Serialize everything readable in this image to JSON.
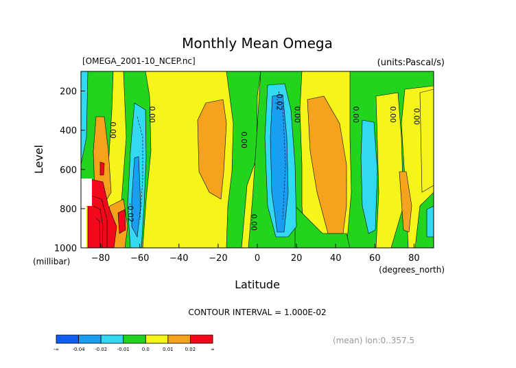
{
  "chart_data": {
    "type": "heatmap",
    "title": "Monthly Mean Omega",
    "source_label": "[OMEGA_2001-10_NCEP.nc]",
    "units_label": "(units:Pascal/s)",
    "xlabel": "Latitude",
    "ylabel": "Level",
    "x_unit_label": "(degrees_north)",
    "y_unit_label": "(millibar)",
    "xlim": [
      -90,
      90
    ],
    "ylim": [
      1000,
      100
    ],
    "x_ticks": [
      -80,
      -60,
      -40,
      -20,
      0,
      20,
      40,
      60,
      80
    ],
    "y_ticks": [
      200,
      400,
      600,
      800,
      1000
    ],
    "contour_interval_text": "CONTOUR INTERVAL = 1.000E-02",
    "mean_note": "(mean) lon:0..357.5",
    "grid": false,
    "colorbar": {
      "colors": [
        "#0f5df2",
        "#1a9ef2",
        "#33d9f2",
        "#22d41e",
        "#f5f51a",
        "#f5a21c",
        "#f2081a"
      ],
      "labels": [
        "-∞",
        "-0.04",
        "-0.02",
        "-0.01",
        "0.0",
        "0.01",
        "0.02",
        "∞"
      ]
    },
    "contour_labels": [
      {
        "lat": -75,
        "lev": 400,
        "text": "0.00"
      },
      {
        "lat": -55,
        "lev": 320,
        "text": "0.00"
      },
      {
        "lat": -66,
        "lev": 820,
        "text": "-0.02"
      },
      {
        "lat": -8,
        "lev": 450,
        "text": "0.00"
      },
      {
        "lat": -3,
        "lev": 870,
        "text": "0.00"
      },
      {
        "lat": 10,
        "lev": 250,
        "text": "-0.02"
      },
      {
        "lat": 19,
        "lev": 320,
        "text": "0.00"
      },
      {
        "lat": 49,
        "lev": 320,
        "text": "0.00"
      },
      {
        "lat": 68,
        "lev": 320,
        "text": "0.00"
      },
      {
        "lat": 80,
        "lev": 330,
        "text": "0.00"
      }
    ]
  }
}
